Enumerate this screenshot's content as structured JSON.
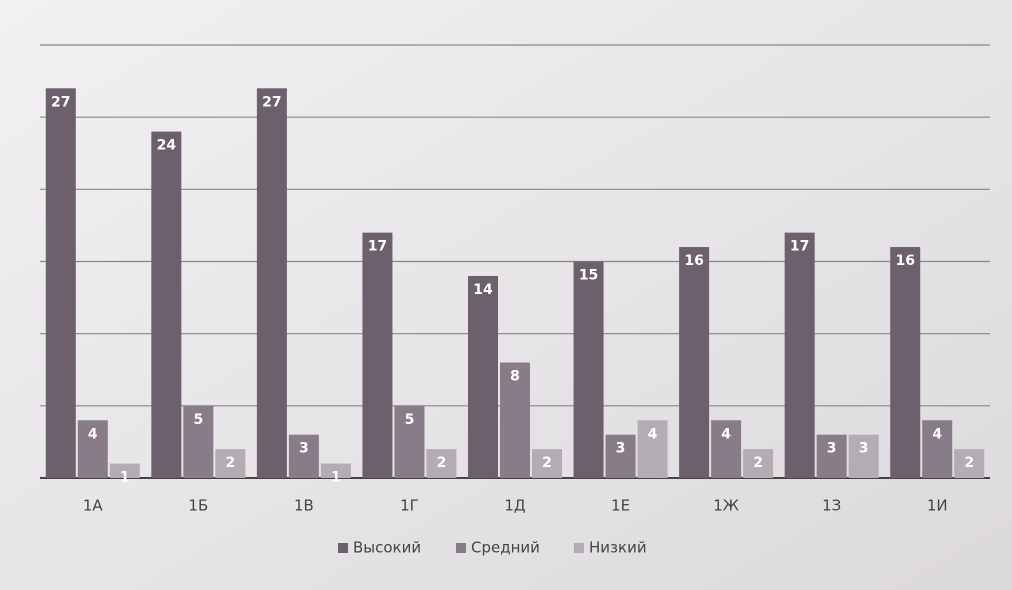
{
  "chart_data": {
    "type": "bar",
    "categories": [
      "1А",
      "1Б",
      "1В",
      "1Г",
      "1Д",
      "1Е",
      "1Ж",
      "1З",
      "1И"
    ],
    "series": [
      {
        "name": "Высокий",
        "color": "#6b606c",
        "values": [
          27,
          24,
          27,
          17,
          14,
          15,
          16,
          17,
          16
        ]
      },
      {
        "name": "Средний",
        "color": "#877c88",
        "values": [
          4,
          5,
          3,
          5,
          8,
          3,
          4,
          3,
          4
        ]
      },
      {
        "name": "Низкий",
        "color": "#b3acb3",
        "values": [
          1,
          2,
          1,
          2,
          2,
          4,
          2,
          3,
          2
        ]
      }
    ],
    "ylim": [
      0,
      30
    ],
    "yticks": [
      0,
      5,
      10,
      15,
      20,
      25,
      30
    ],
    "grid": true,
    "legend": "bottom"
  }
}
